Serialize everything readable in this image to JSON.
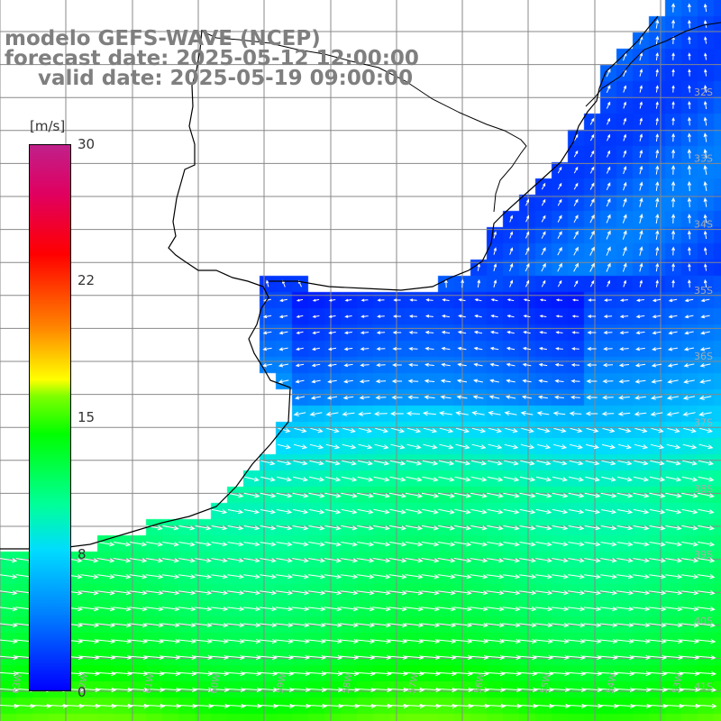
{
  "map": {
    "title_model": "modelo GEFS-WAVE (NCEP)",
    "title_forecast": "forecast date: 2025-05-12 12:00:00",
    "title_valid": "valid date: 2025-05-19 09:00:00",
    "variable": "wind speed",
    "units_label": "[m/s]",
    "colorbar": {
      "ticks": [
        {
          "value": 30,
          "label": "30"
        },
        {
          "value": 22,
          "label": "22"
        },
        {
          "value": 15,
          "label": "15"
        },
        {
          "value": 8,
          "label": "8"
        },
        {
          "value": 0,
          "label": "0"
        }
      ],
      "vmin": 0,
      "vmax": 30
    },
    "lat_labels": [
      "32S",
      "33S",
      "34S",
      "35S",
      "36S",
      "37S",
      "38S",
      "39S",
      "40S",
      "41S"
    ],
    "lon_labels": [
      "63W",
      "62W",
      "61W",
      "60W",
      "59W",
      "58W",
      "57W",
      "56W",
      "55W",
      "54W",
      "53W"
    ],
    "colors": {
      "land": "#ffffff",
      "grid": "#888888",
      "coast": "#000000",
      "arrows": "#ffffff",
      "title": "#7f7f7f"
    }
  }
}
